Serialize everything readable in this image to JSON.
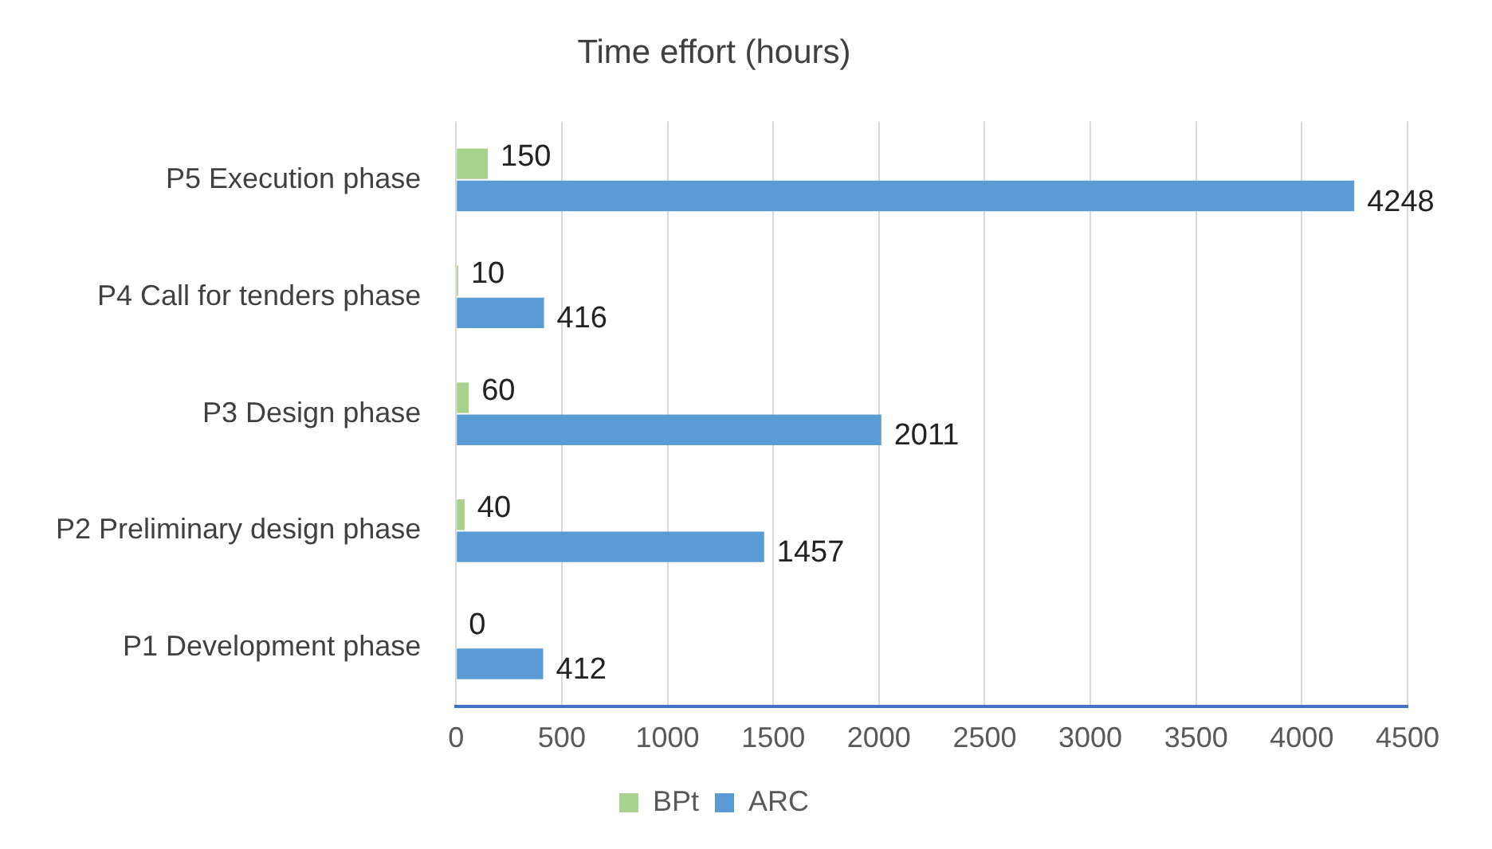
{
  "chart_data": {
    "type": "bar",
    "orientation": "horizontal",
    "title": "Time effort (hours)",
    "categories": [
      "P5 Execution phase",
      "P4 Call for tenders phase",
      "P3 Design phase",
      "P2 Preliminary design phase",
      "P1 Development phase"
    ],
    "series": [
      {
        "name": "BPt",
        "color": "#a9d18e",
        "values": [
          150,
          10,
          60,
          40,
          0
        ]
      },
      {
        "name": "ARC",
        "color": "#5b9bd5",
        "values": [
          4248,
          416,
          2011,
          1457,
          412
        ]
      }
    ],
    "xlim": [
      0,
      4500
    ],
    "xticks": [
      0,
      500,
      1000,
      1500,
      2000,
      2500,
      3000,
      3500,
      4000,
      4500
    ],
    "grid": "x",
    "legend": "bottom",
    "data_labels": true
  }
}
